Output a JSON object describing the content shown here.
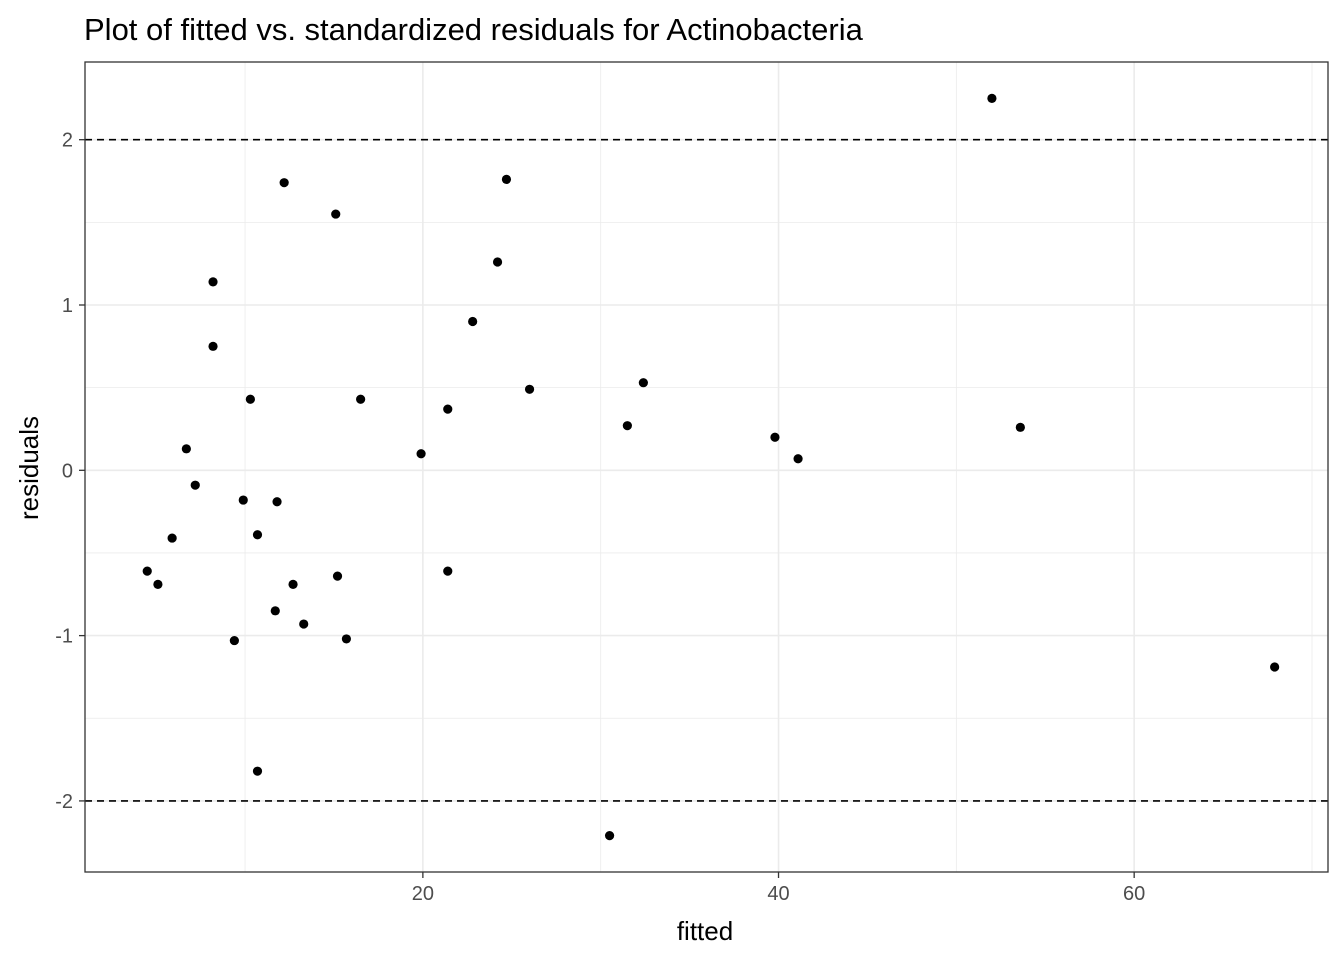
{
  "chart_data": {
    "type": "scatter",
    "title": "Plot of fitted vs. standardized residuals for Actinobacteria",
    "xlabel": "fitted",
    "ylabel": "residuals",
    "xlim": [
      1.0,
      70.9
    ],
    "ylim": [
      -2.43,
      2.47
    ],
    "x_ticks": [
      20,
      40,
      60
    ],
    "y_ticks": [
      -2,
      -1,
      0,
      1,
      2
    ],
    "x_tick_labels": [
      "20",
      "40",
      "60"
    ],
    "y_tick_labels": [
      "-2",
      "-1",
      "0",
      "1",
      "2"
    ],
    "reference_lines": [
      2,
      -2
    ],
    "grid": true,
    "points": [
      {
        "x": 4.5,
        "y": -0.61
      },
      {
        "x": 5.1,
        "y": -0.69
      },
      {
        "x": 5.9,
        "y": -0.41
      },
      {
        "x": 6.7,
        "y": 0.13
      },
      {
        "x": 7.2,
        "y": -0.09
      },
      {
        "x": 8.2,
        "y": 1.14
      },
      {
        "x": 8.2,
        "y": 0.75
      },
      {
        "x": 9.4,
        "y": -1.03
      },
      {
        "x": 9.9,
        "y": -0.18
      },
      {
        "x": 10.3,
        "y": 0.43
      },
      {
        "x": 10.7,
        "y": -0.39
      },
      {
        "x": 10.7,
        "y": -1.82
      },
      {
        "x": 11.7,
        "y": -0.85
      },
      {
        "x": 11.8,
        "y": -0.19
      },
      {
        "x": 12.2,
        "y": 1.74
      },
      {
        "x": 12.7,
        "y": -0.69
      },
      {
        "x": 13.3,
        "y": -0.93
      },
      {
        "x": 15.1,
        "y": 1.55
      },
      {
        "x": 15.2,
        "y": -0.64
      },
      {
        "x": 15.7,
        "y": -1.02
      },
      {
        "x": 16.5,
        "y": 0.43
      },
      {
        "x": 19.9,
        "y": 0.1
      },
      {
        "x": 21.4,
        "y": 0.37
      },
      {
        "x": 21.4,
        "y": -0.61
      },
      {
        "x": 22.8,
        "y": 0.9
      },
      {
        "x": 24.2,
        "y": 1.26
      },
      {
        "x": 24.7,
        "y": 1.76
      },
      {
        "x": 26.0,
        "y": 0.49
      },
      {
        "x": 30.5,
        "y": -2.21
      },
      {
        "x": 31.5,
        "y": 0.27
      },
      {
        "x": 32.4,
        "y": 0.53
      },
      {
        "x": 39.8,
        "y": 0.2
      },
      {
        "x": 41.1,
        "y": 0.07
      },
      {
        "x": 52.0,
        "y": 2.25
      },
      {
        "x": 53.6,
        "y": 0.26
      },
      {
        "x": 67.9,
        "y": -1.19
      }
    ]
  }
}
